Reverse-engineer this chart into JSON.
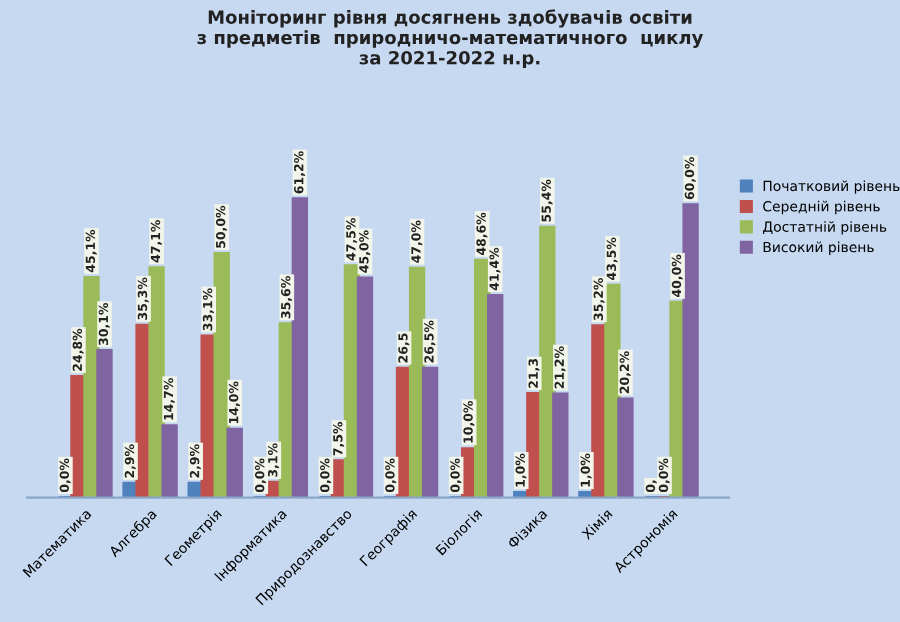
{
  "chart_data": {
    "type": "bar",
    "title": "Моніторинг рівня досягнень здобувачів освіти\nз предметів  природничо-математичного  циклу\nза 2021-2022 н.р.",
    "categories": [
      "Математика",
      "Алгебра",
      "Геометрія",
      "Інформатика",
      "Природознавство",
      "Географія",
      "Біологія",
      "Фізика",
      "Хімія",
      "Астрономія"
    ],
    "series": [
      {
        "name": "Початковий рівень",
        "color": "#4f81bd",
        "values": [
          0.0,
          2.9,
          2.9,
          0.0,
          0.0,
          0.0,
          0.0,
          1.0,
          1.0,
          0.0
        ],
        "value_labels": [
          "0,0%",
          "2,9%",
          "2,9%",
          "0,0%",
          "0,0%",
          "0,0%",
          "0,0%",
          "1,0%",
          "1,0%",
          "0,"
        ]
      },
      {
        "name": "Середній рівень",
        "color": "#c0504d",
        "values": [
          24.8,
          35.3,
          33.1,
          3.1,
          7.5,
          26.5,
          10.0,
          21.3,
          35.2,
          0.0
        ],
        "value_labels": [
          "24,8%",
          "35,3%",
          "33,1%",
          "3,1%",
          "7,5%",
          "26,5",
          "10,0%",
          "21,3",
          "35,2%",
          "0,0%"
        ]
      },
      {
        "name": "Достатній рівень",
        "color": "#9bbb59",
        "values": [
          45.1,
          47.1,
          50.0,
          35.6,
          47.5,
          47.0,
          48.6,
          55.4,
          43.5,
          40.0
        ],
        "value_labels": [
          "45,1%",
          "47,1%",
          "50,0%",
          "35,6%",
          "47,5%",
          "47,0%",
          "48,6%",
          "55,4%",
          "43,5%",
          "40,0%"
        ]
      },
      {
        "name": "Високий рівень",
        "color": "#8064a2",
        "values": [
          30.1,
          14.7,
          14.0,
          61.2,
          45.0,
          26.5,
          41.4,
          21.2,
          20.2,
          60.0
        ],
        "value_labels": [
          "30,1%",
          "14,7%",
          "14,0%",
          "61,2%",
          "45,0%",
          "26,5%",
          "41,4%",
          "21,2%",
          "20,2%",
          "60,0%"
        ]
      }
    ],
    "legend": "right"
  }
}
